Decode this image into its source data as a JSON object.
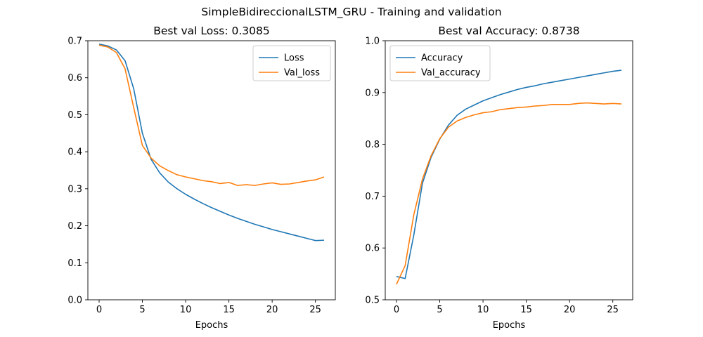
{
  "figure": {
    "suptitle": "SimpleBidireccionalLSTM_GRU - Training and validation"
  },
  "colors": {
    "series1": "#1f77b4",
    "series2": "#ff7f0e"
  },
  "chart_data": [
    {
      "type": "line",
      "title": "Best val Loss: 0.3085",
      "xlabel": "Epochs",
      "ylabel": "",
      "xlim": [
        -1.3,
        27.3
      ],
      "ylim": [
        0,
        0.7
      ],
      "xticks": [
        0,
        5,
        10,
        15,
        20,
        25
      ],
      "xtick_labels": [
        "0",
        "5",
        "10",
        "15",
        "20",
        "25"
      ],
      "yticks": [
        0,
        0.1,
        0.2,
        0.3,
        0.4,
        0.5,
        0.6,
        0.7
      ],
      "ytick_labels": [
        "0.0",
        "0.1",
        "0.2",
        "0.3",
        "0.4",
        "0.5",
        "0.6",
        "0.7"
      ],
      "legend": "top-right",
      "grid": false,
      "x": [
        0,
        1,
        2,
        3,
        4,
        5,
        6,
        7,
        8,
        9,
        10,
        11,
        12,
        13,
        14,
        15,
        16,
        17,
        18,
        19,
        20,
        21,
        22,
        23,
        24,
        25,
        26
      ],
      "series": [
        {
          "name": "Loss",
          "values": [
            0.691,
            0.686,
            0.675,
            0.646,
            0.57,
            0.45,
            0.38,
            0.343,
            0.318,
            0.3,
            0.285,
            0.272,
            0.26,
            0.249,
            0.239,
            0.229,
            0.22,
            0.212,
            0.204,
            0.197,
            0.19,
            0.184,
            0.178,
            0.172,
            0.166,
            0.16,
            0.161
          ]
        },
        {
          "name": "Val_loss",
          "values": [
            0.688,
            0.683,
            0.668,
            0.624,
            0.519,
            0.417,
            0.383,
            0.362,
            0.349,
            0.338,
            0.332,
            0.327,
            0.322,
            0.319,
            0.314,
            0.317,
            0.309,
            0.311,
            0.309,
            0.313,
            0.316,
            0.312,
            0.313,
            0.317,
            0.321,
            0.324,
            0.332
          ]
        }
      ]
    },
    {
      "type": "line",
      "title": "Best val Accuracy: 0.8738",
      "xlabel": "Epochs",
      "ylabel": "",
      "xlim": [
        -1.3,
        27.3
      ],
      "ylim": [
        0.5,
        1.0
      ],
      "xticks": [
        0,
        5,
        10,
        15,
        20,
        25
      ],
      "xtick_labels": [
        "0",
        "5",
        "10",
        "15",
        "20",
        "25"
      ],
      "yticks": [
        0.5,
        0.6,
        0.7,
        0.8,
        0.9,
        1.0
      ],
      "ytick_labels": [
        "0.5",
        "0.6",
        "0.7",
        "0.8",
        "0.9",
        "1.0"
      ],
      "legend": "top-left",
      "grid": false,
      "x": [
        0,
        1,
        2,
        3,
        4,
        5,
        6,
        7,
        8,
        9,
        10,
        11,
        12,
        13,
        14,
        15,
        16,
        17,
        18,
        19,
        20,
        21,
        22,
        23,
        24,
        25,
        26
      ],
      "series": [
        {
          "name": "Accuracy",
          "values": [
            0.545,
            0.541,
            0.625,
            0.725,
            0.775,
            0.81,
            0.837,
            0.856,
            0.868,
            0.876,
            0.884,
            0.89,
            0.896,
            0.901,
            0.906,
            0.91,
            0.913,
            0.917,
            0.92,
            0.923,
            0.926,
            0.929,
            0.932,
            0.935,
            0.938,
            0.941,
            0.943
          ]
        },
        {
          "name": "Val_accuracy",
          "values": [
            0.53,
            0.566,
            0.664,
            0.733,
            0.778,
            0.811,
            0.833,
            0.845,
            0.852,
            0.857,
            0.861,
            0.863,
            0.867,
            0.869,
            0.871,
            0.872,
            0.874,
            0.875,
            0.877,
            0.877,
            0.877,
            0.879,
            0.88,
            0.879,
            0.878,
            0.879,
            0.878
          ]
        }
      ]
    }
  ]
}
